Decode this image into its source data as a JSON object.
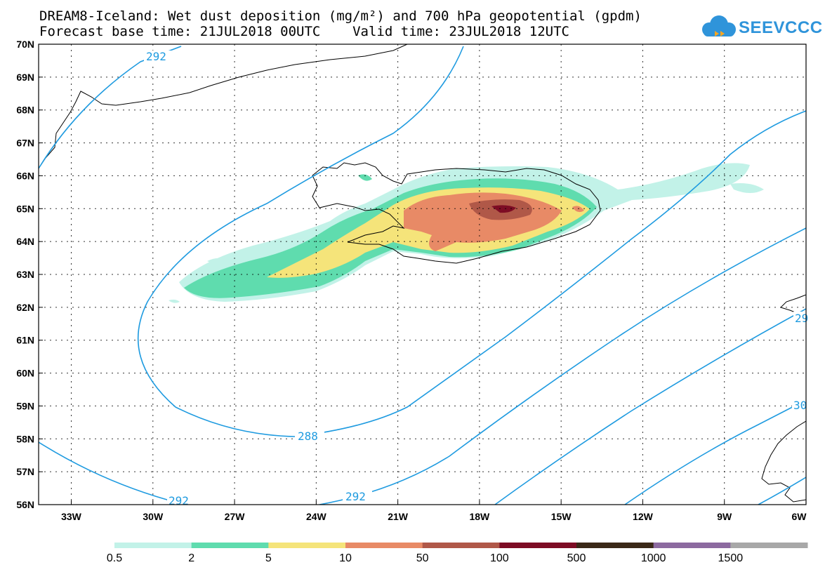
{
  "title_line1": "DREAM8-Iceland: Wet dust deposition (mg/m²) and 700 hPa geopotential (gpdm)",
  "title_line2": "Forecast base time: 21JUL2018 00UTC    Valid time: 23JUL2018 12UTC",
  "logo_text": "SEEVCCC",
  "lat_labels": [
    "70N",
    "69N",
    "68N",
    "67N",
    "66N",
    "65N",
    "64N",
    "63N",
    "62N",
    "61N",
    "60N",
    "59N",
    "58N",
    "57N",
    "56N"
  ],
  "lon_labels": [
    "33W",
    "30W",
    "27W",
    "24W",
    "21W",
    "18W",
    "15W",
    "12W",
    "9W",
    "6W"
  ],
  "contour_labels": [
    "292",
    "288",
    "292",
    "292",
    "29",
    "30"
  ],
  "legend": {
    "labels": [
      "0.5",
      "2",
      "5",
      "10",
      "50",
      "100",
      "500",
      "1000",
      "1500"
    ],
    "colors": [
      "#c2f2e8",
      "#5fdcae",
      "#f5e47a",
      "#e88a66",
      "#b05848",
      "#7d0c24",
      "#3a2818",
      "#8c6aa0",
      "#a8a8a8"
    ]
  },
  "colors": {
    "contour": "#1f9be0",
    "coast": "#000000",
    "grid": "#000000"
  }
}
